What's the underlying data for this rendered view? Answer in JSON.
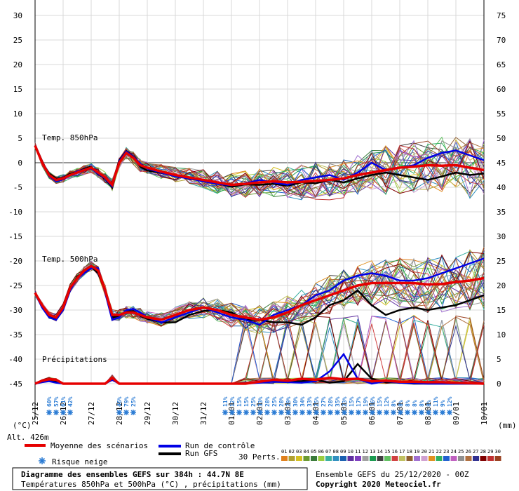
{
  "chart_data": {
    "type": "line",
    "title": "Diagramme des ensembles GEFS sur 384h : 44.7N 8E",
    "subtitle": "Températures 850hPa et 500hPa (°C) , précipitations (mm)",
    "run_info": "Ensemble GEFS du 25/12/2020 - 00Z",
    "copyright": "Copyright 2020 Meteociel.fr",
    "altitude": "Alt. 426m",
    "left_unit": "(°C)",
    "right_unit": "(mm)",
    "left_ticks": [
      "30",
      "25",
      "20",
      "15",
      "10",
      "5",
      "0",
      "-5",
      "-10",
      "-15",
      "-20",
      "-25",
      "-30",
      "-35",
      "-40",
      "-45"
    ],
    "right_ticks": [
      "75",
      "70",
      "65",
      "60",
      "55",
      "50",
      "45",
      "40",
      "35",
      "30",
      "25",
      "20",
      "15",
      "10",
      "5",
      "0"
    ],
    "ylim": [
      -45,
      30
    ],
    "x_dates": [
      "25/12",
      "26/12",
      "27/12",
      "28/12",
      "29/12",
      "30/12",
      "31/12",
      "01/01",
      "02/01",
      "03/01",
      "04/01",
      "05/01",
      "06/01",
      "07/01",
      "08/01",
      "09/01",
      "10/01"
    ],
    "section_labels": {
      "t850": "Temp. 850hPa",
      "t500": "Temp. 500hPa",
      "precip": "Précipitations"
    },
    "legend": {
      "mean": "Moyenne des scénarios",
      "control": "Run de contrôle",
      "gfs": "Run GFS",
      "snow": "Risque neige",
      "perts": "30 Perts.",
      "colors": {
        "mean": "#e60000",
        "control": "#0000e6",
        "gfs": "#000000",
        "snow": "#2a7bd4"
      }
    },
    "member_numbers": [
      "01",
      "02",
      "03",
      "04",
      "05",
      "06",
      "07",
      "08",
      "09",
      "10",
      "11",
      "12",
      "13",
      "14",
      "15",
      "16",
      "17",
      "18",
      "19",
      "20",
      "21",
      "22",
      "23",
      "24",
      "25",
      "26",
      "27",
      "28",
      "29",
      "30"
    ],
    "member_colors": [
      "#e0801c",
      "#b0a030",
      "#d4c020",
      "#6a9a30",
      "#3a7a3a",
      "#9acc40",
      "#3ab0a0",
      "#3090c0",
      "#1a60b0",
      "#6030a0",
      "#8040c0",
      "#a0a0a0",
      "#1a9a50",
      "#404040",
      "#60c060",
      "#d04040",
      "#c0c060",
      "#906030",
      "#a070d0",
      "#d0a0d0",
      "#e09020",
      "#30b060",
      "#2060d0",
      "#c060c0",
      "#909090",
      "#b07040",
      "#303090",
      "#800000",
      "#c03030",
      "#9a4020"
    ],
    "snow_risk": {
      "group1": [
        "60%",
        "57%",
        "61%",
        "42%"
      ],
      "group2": [
        "46%",
        "79%",
        "25%"
      ],
      "group3": [
        "11%",
        "12%",
        "15%",
        "15%",
        "25%",
        "33%",
        "28%",
        "25%",
        "28%",
        "29%",
        "30%",
        "34%",
        "33%",
        "25%",
        "27%",
        "28%",
        "35%",
        "23%",
        "15%",
        "17%",
        "19%",
        "16%",
        "15%",
        "12%",
        "8%",
        "8%",
        "8%",
        "8%",
        "8%",
        "8%",
        "11%",
        "9%",
        "12%"
      ]
    },
    "series_t850": {
      "x_day": [
        0,
        0.25,
        0.5,
        0.75,
        1,
        1.25,
        1.5,
        1.75,
        2,
        2.25,
        2.5,
        2.75,
        3,
        3.25,
        3.5,
        3.75,
        4,
        4.5,
        5,
        5.5,
        6,
        6.5,
        7,
        7.5,
        8,
        8.5,
        9,
        9.5,
        10,
        10.5,
        11,
        11.5,
        12,
        12.5,
        13,
        13.5,
        14,
        14.5,
        15,
        15.5,
        16
      ],
      "mean": [
        3.5,
        0,
        -2.5,
        -3.5,
        -3.2,
        -2.5,
        -2,
        -1.5,
        -1,
        -2,
        -3,
        -4.5,
        0,
        2,
        1,
        -0.5,
        -1,
        -1.8,
        -2.5,
        -3,
        -3.5,
        -4,
        -4.5,
        -4.3,
        -4,
        -3.8,
        -4,
        -3.9,
        -3.7,
        -3.5,
        -3.2,
        -2.5,
        -2,
        -1.5,
        -1,
        -0.8,
        -0.5,
        -0.6,
        -0.5,
        -1,
        -1.5
      ],
      "control": [
        3.5,
        0,
        -2.7,
        -3.8,
        -3.4,
        -2.5,
        -1.8,
        -1.4,
        -1.2,
        -2.2,
        -3.2,
        -4.8,
        0.3,
        2.3,
        1.2,
        -0.2,
        -1.2,
        -2,
        -2.8,
        -3.2,
        -3.8,
        -4.3,
        -4.6,
        -4.2,
        -3.5,
        -4,
        -4.5,
        -3.5,
        -3,
        -2.5,
        -3.5,
        -2,
        0,
        -1.5,
        -1,
        -0.5,
        1,
        2,
        2.5,
        1.5,
        0.5
      ],
      "gfs": [
        3.5,
        0,
        -2.2,
        -3.2,
        -3.1,
        -2.2,
        -1.9,
        -1.2,
        -0.8,
        -2.3,
        -3.3,
        -5,
        0.5,
        2.4,
        1.3,
        -0.8,
        -1.6,
        -2.1,
        -2.6,
        -3.3,
        -3.5,
        -4.2,
        -4.9,
        -4.4,
        -4.5,
        -4.3,
        -4.7,
        -4,
        -4.2,
        -3.5,
        -4,
        -3.2,
        -2.5,
        -2,
        -2.5,
        -3,
        -3.5,
        -2.8,
        -2,
        -2.5,
        -2.2
      ]
    },
    "series_t500": {
      "x_day": [
        0,
        0.25,
        0.5,
        0.75,
        1,
        1.25,
        1.5,
        1.75,
        2,
        2.25,
        2.5,
        2.75,
        3,
        3.25,
        3.5,
        3.75,
        4,
        4.5,
        5,
        5.5,
        6,
        6.5,
        7,
        7.5,
        8,
        8.5,
        9,
        9.5,
        10,
        10.5,
        11,
        11.5,
        12,
        12.5,
        13,
        13.5,
        14,
        14.5,
        15,
        15.5,
        16
      ],
      "mean": [
        -26.5,
        -29,
        -31,
        -31.5,
        -29.5,
        -25.5,
        -23.5,
        -22,
        -21,
        -22,
        -26,
        -31,
        -31,
        -30.5,
        -30.5,
        -31,
        -31.5,
        -32,
        -31,
        -30,
        -29.5,
        -30,
        -31,
        -31.5,
        -32,
        -31.5,
        -30.5,
        -29,
        -28,
        -27,
        -26,
        -25,
        -24.5,
        -24.5,
        -24.5,
        -24.5,
        -24.8,
        -24.7,
        -24.3,
        -24,
        -23.5
      ],
      "control": [
        -26.5,
        -29.5,
        -31.5,
        -32,
        -30,
        -26,
        -23.5,
        -22.5,
        -21.5,
        -21.5,
        -26.5,
        -32,
        -31.5,
        -30,
        -29.8,
        -30.5,
        -31.5,
        -32.5,
        -31.5,
        -30.5,
        -29.5,
        -30.5,
        -31.5,
        -32,
        -33,
        -31,
        -30,
        -29,
        -27,
        -26,
        -24,
        -23,
        -22.5,
        -23,
        -24,
        -24,
        -23.5,
        -22.5,
        -21.5,
        -20.5,
        -19.5
      ],
      "gfs": [
        -26.5,
        -29.2,
        -31.2,
        -31.8,
        -29.8,
        -26,
        -23.2,
        -22.2,
        -21.2,
        -22.5,
        -26.2,
        -31.5,
        -31.2,
        -30.3,
        -30.2,
        -31.2,
        -31.8,
        -32.5,
        -32.5,
        -31,
        -30.2,
        -30,
        -30.5,
        -32,
        -32,
        -32.5,
        -32.5,
        -33,
        -31.5,
        -29,
        -28,
        -26,
        -29,
        -31,
        -30,
        -29.5,
        -30,
        -29.5,
        -29,
        -28,
        -27
      ]
    },
    "series_precip_mm": {
      "x_day": [
        0,
        0.25,
        0.5,
        0.75,
        1,
        1.25,
        1.5,
        1.75,
        2,
        2.25,
        2.5,
        2.75,
        3,
        3.25,
        3.5,
        3.75,
        4,
        4.5,
        5,
        5.5,
        6,
        6.5,
        7,
        7.5,
        8,
        8.5,
        9,
        9.5,
        10,
        10.5,
        11,
        11.5,
        12,
        12.5,
        13,
        13.5,
        14,
        14.5,
        15,
        15.5,
        16
      ],
      "mean": [
        0,
        0.6,
        0.9,
        0.8,
        0,
        0,
        0,
        0,
        0,
        0,
        0,
        1.2,
        0,
        0,
        0,
        0,
        0,
        0,
        0,
        0,
        0,
        0,
        0,
        0,
        0.4,
        0.8,
        0.6,
        1,
        0.8,
        1.2,
        0.9,
        1,
        0.5,
        0.6,
        0.4,
        0.4,
        0.3,
        0.3,
        0.2,
        0.1,
        0
      ],
      "control": [
        0,
        0.3,
        0.5,
        0.2,
        0,
        0,
        0,
        0,
        0,
        0,
        0,
        0.8,
        0,
        0,
        0,
        0,
        0,
        0,
        0,
        0,
        0,
        0,
        0,
        0,
        0.2,
        0.4,
        0.3,
        0.2,
        0.5,
        2.5,
        6,
        1,
        0,
        0.5,
        0.2,
        0.1,
        0,
        0,
        0,
        0,
        0
      ],
      "gfs": [
        0,
        0.4,
        0.8,
        0.5,
        0,
        0,
        0,
        0,
        0,
        0,
        0,
        1,
        0,
        0,
        0,
        0,
        0,
        0,
        0,
        0,
        0,
        0,
        0,
        0,
        0.3,
        0.6,
        0.4,
        0.5,
        0.8,
        0.2,
        0.5,
        4,
        1,
        0.3,
        0.2,
        0,
        0,
        0,
        0,
        0,
        0
      ]
    }
  }
}
